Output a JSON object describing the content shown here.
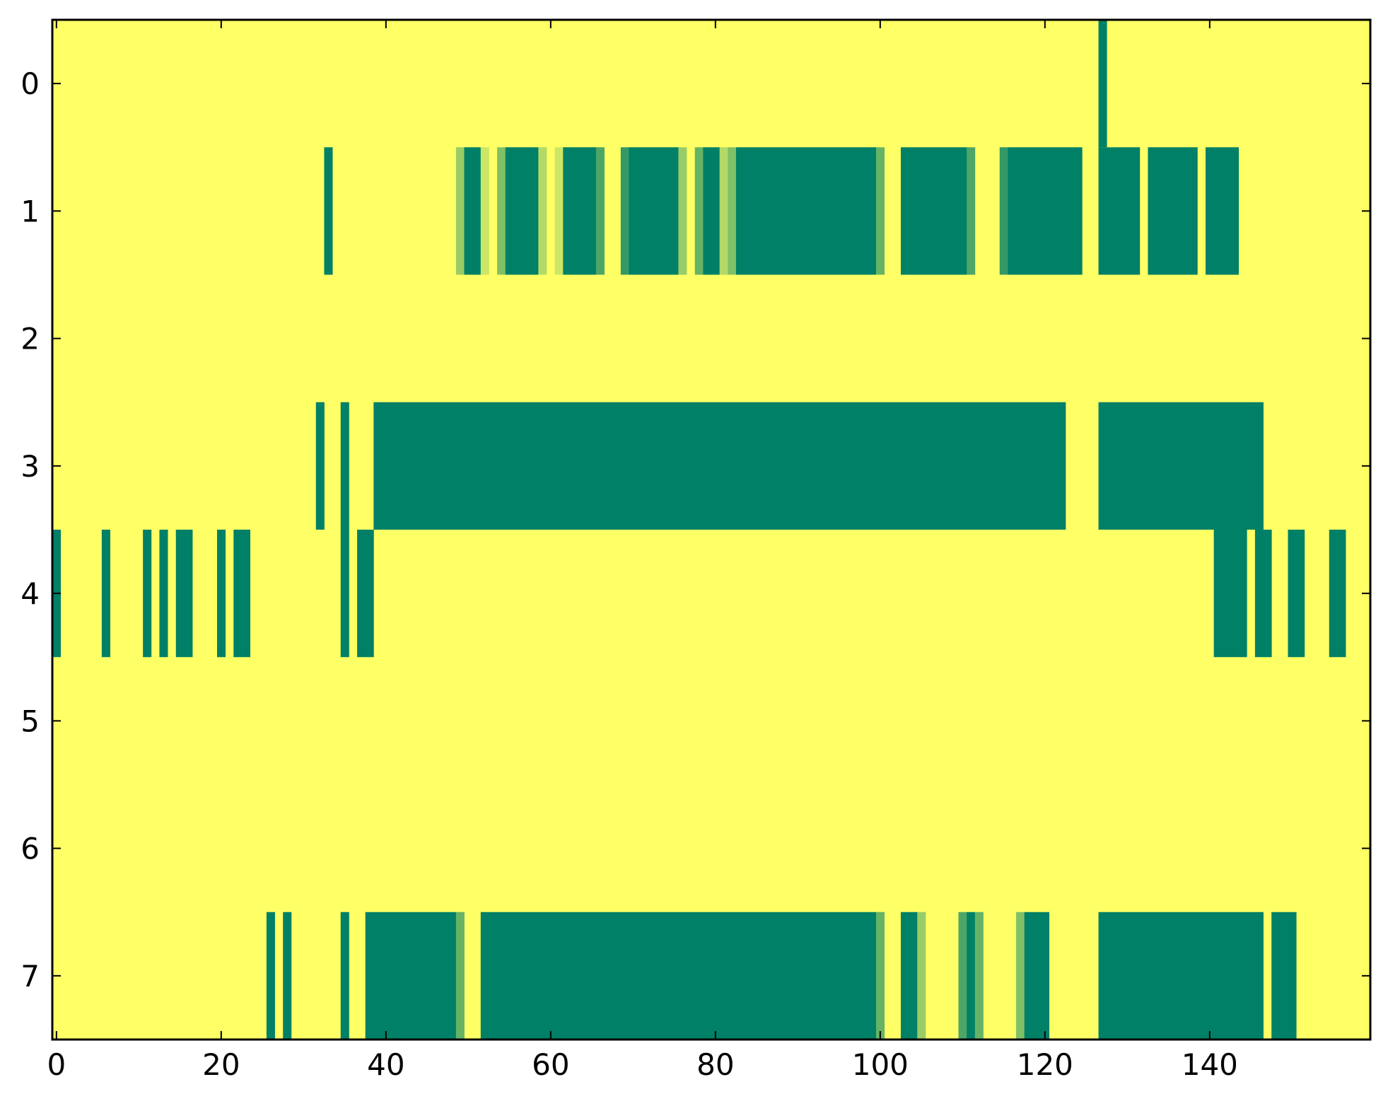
{
  "chart_data": {
    "type": "heatmap",
    "title": "",
    "xlabel": "",
    "ylabel": "",
    "xlim": [
      -0.5,
      159.5
    ],
    "ylim": [
      7.5,
      -0.5
    ],
    "x_ticks": [
      "0",
      "20",
      "40",
      "60",
      "80",
      "100",
      "120",
      "140"
    ],
    "y_ticks": [
      "0",
      "1",
      "2",
      "3",
      "4",
      "5",
      "6",
      "7"
    ],
    "grid": false,
    "legend": "none",
    "colormap": "summer_r",
    "colors": {
      "low": "#ffff66",
      "high": "#008066",
      "mid_light": "#ccea66",
      "mid_med": "#99cc66",
      "mid_dark": "#4ca566",
      "mid_darker": "#339966",
      "axes_edge": "#000000",
      "background": "#ffffff"
    },
    "rows": [
      {
        "row": 0,
        "segments": [
          [
            127,
            127,
            1.0
          ]
        ]
      },
      {
        "row": 1,
        "segments": [
          [
            33,
            33,
            1.0
          ],
          [
            49,
            49,
            0.4
          ],
          [
            50,
            51,
            1.0
          ],
          [
            52,
            52,
            0.2
          ],
          [
            54,
            54,
            0.5
          ],
          [
            55,
            58,
            1.0
          ],
          [
            59,
            59,
            0.3
          ],
          [
            61,
            61,
            0.2
          ],
          [
            62,
            65,
            1.0
          ],
          [
            66,
            66,
            0.7
          ],
          [
            69,
            69,
            0.8
          ],
          [
            70,
            75,
            1.0
          ],
          [
            76,
            76,
            0.4
          ],
          [
            78,
            78,
            0.6
          ],
          [
            79,
            80,
            1.0
          ],
          [
            81,
            81,
            0.3
          ],
          [
            82,
            82,
            0.5
          ],
          [
            83,
            99,
            1.0
          ],
          [
            100,
            100,
            0.6
          ],
          [
            103,
            110,
            1.0
          ],
          [
            111,
            111,
            0.7
          ],
          [
            115,
            115,
            0.8
          ],
          [
            116,
            124,
            1.0
          ],
          [
            127,
            131,
            1.0
          ],
          [
            133,
            138,
            1.0
          ],
          [
            140,
            143,
            1.0
          ]
        ]
      },
      {
        "row": 2,
        "segments": []
      },
      {
        "row": 3,
        "segments": [
          [
            32,
            32,
            1.0
          ],
          [
            35,
            35,
            1.0
          ],
          [
            39,
            122,
            1.0
          ],
          [
            127,
            146,
            1.0
          ]
        ]
      },
      {
        "row": 4,
        "segments": [
          [
            0,
            0,
            1.0
          ],
          [
            6,
            6,
            1.0
          ],
          [
            11,
            11,
            1.0
          ],
          [
            13,
            13,
            1.0
          ],
          [
            15,
            16,
            1.0
          ],
          [
            20,
            20,
            1.0
          ],
          [
            22,
            23,
            1.0
          ],
          [
            35,
            35,
            1.0
          ],
          [
            37,
            38,
            1.0
          ],
          [
            141,
            144,
            1.0
          ],
          [
            146,
            147,
            1.0
          ],
          [
            150,
            151,
            1.0
          ],
          [
            155,
            156,
            1.0
          ]
        ]
      },
      {
        "row": 5,
        "segments": []
      },
      {
        "row": 6,
        "segments": []
      },
      {
        "row": 7,
        "segments": [
          [
            26,
            26,
            1.0
          ],
          [
            28,
            28,
            1.0
          ],
          [
            35,
            35,
            1.0
          ],
          [
            38,
            48,
            1.0
          ],
          [
            49,
            49,
            0.6
          ],
          [
            52,
            99,
            1.0
          ],
          [
            100,
            100,
            0.6
          ],
          [
            103,
            104,
            1.0
          ],
          [
            105,
            105,
            0.4
          ],
          [
            110,
            110,
            0.7
          ],
          [
            111,
            111,
            1.0
          ],
          [
            112,
            112,
            0.6
          ],
          [
            117,
            117,
            0.5
          ],
          [
            118,
            120,
            1.0
          ],
          [
            127,
            146,
            1.0
          ],
          [
            148,
            150,
            1.0
          ]
        ]
      }
    ]
  }
}
